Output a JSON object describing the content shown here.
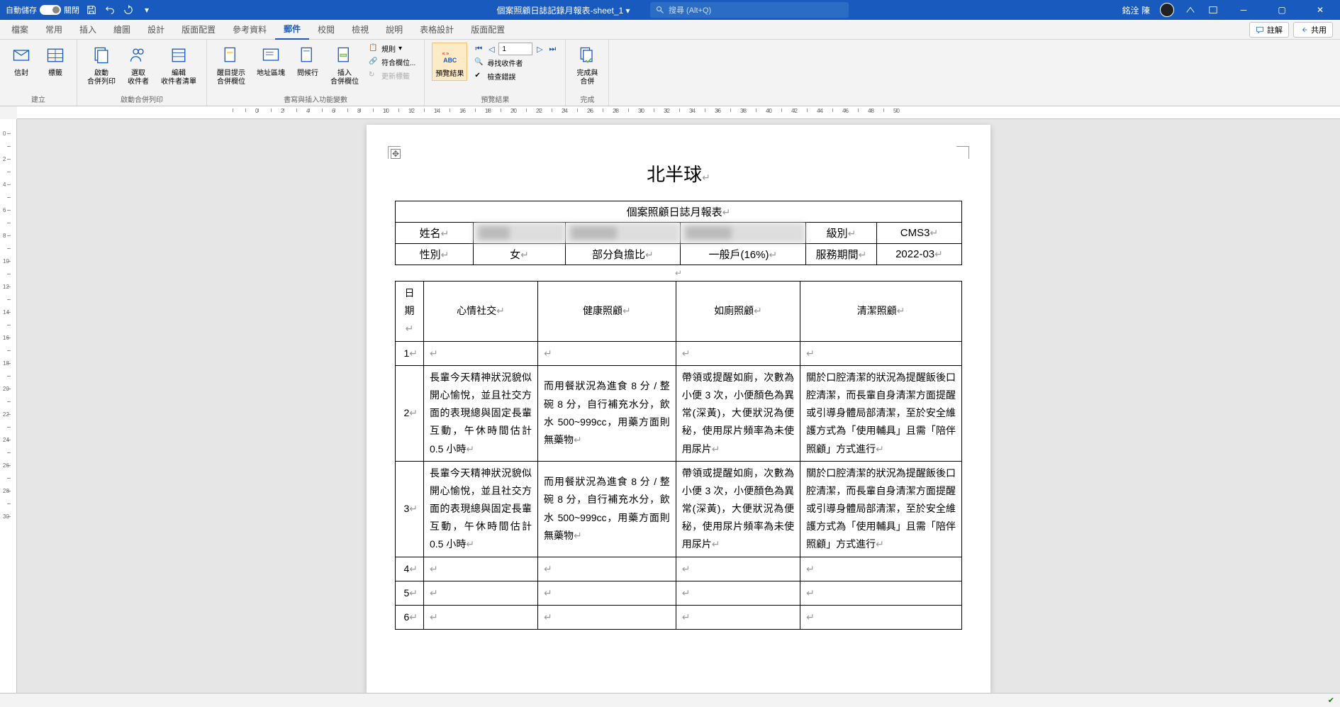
{
  "titlebar": {
    "autosave_label": "自動儲存",
    "autosave_state": "關閉",
    "doc_title": "個案照顧日誌記錄月報表-sheet_1",
    "search_placeholder": "搜尋 (Alt+Q)",
    "user_name": "銘洤 陳"
  },
  "tabs": {
    "file": "檔案",
    "home": "常用",
    "insert": "插入",
    "draw": "繪圖",
    "design": "設計",
    "layout": "版面配置",
    "references": "參考資料",
    "mailings": "郵件",
    "review": "校閱",
    "view": "檢視",
    "help": "說明",
    "table_design": "表格設計",
    "table_layout": "版面配置",
    "comments_btn": "註解",
    "share_btn": "共用"
  },
  "ribbon": {
    "group_create": "建立",
    "envelope": "信封",
    "labels": "標籤",
    "group_start": "啟動合併列印",
    "start_merge": "啟動\n合併列印",
    "select_recipients": "選取\n收件者",
    "edit_recipients": "編輯\n收件者清單",
    "group_write": "書寫與插入功能變數",
    "highlight_fields": "醒目提示\n合併欄位",
    "address_block": "地址區塊",
    "greeting": "問候行",
    "insert_field": "插入\n合併欄位",
    "rules": "規則",
    "match_fields": "符合欄位...",
    "update_labels": "更新標籤",
    "group_preview": "預覽結果",
    "preview_results": "預覽結果",
    "record_number": "1",
    "find_recipient": "尋找收件者",
    "check_errors": "檢查錯誤",
    "group_finish": "完成",
    "finish_merge": "完成與\n合併"
  },
  "document": {
    "org_title": "北半球",
    "report_title": "個案照顧日誌月報表",
    "labels": {
      "name": "姓名",
      "grade": "級別",
      "gender": "性別",
      "female": "女",
      "copay": "部分負擔比",
      "household": "一般戶(16%)",
      "service_period": "服務期間"
    },
    "values": {
      "grade": "CMS3",
      "period": "2022-03",
      "name_blur": "████",
      "id_blur": "██████",
      "addr_blur": "██████"
    },
    "columns": {
      "date": "日期",
      "mood": "心情社交",
      "health": "健康照顧",
      "toilet": "如廁照顧",
      "clean": "清潔照顧"
    },
    "rows": [
      {
        "date": "1",
        "mood": "",
        "health": "",
        "toilet": "",
        "clean": ""
      },
      {
        "date": "2",
        "mood": "長輩今天精神狀況貌似開心愉悅，並且社交方面的表現總與固定長輩互動，午休時間估計 0.5 小時",
        "health": "而用餐狀況為進食 8 分 / 整碗 8 分，自行補充水分，飲水 500~999cc，用藥方面則無藥物",
        "toilet": "帶領或提醒如廁，次數為小便 3 次，小便顏色為異常(深黃)，大便狀況為便秘，使用尿片頻率為未使用尿片",
        "clean": "關於口腔清潔的狀況為提醒飯後口腔清潔，而長輩自身清潔方面提醒或引導身體局部清潔，至於安全維護方式為「使用輔具」且需「陪伴照顧」方式進行"
      },
      {
        "date": "3",
        "mood": "長輩今天精神狀況貌似開心愉悅，並且社交方面的表現總與固定長輩互動，午休時間估計 0.5 小時",
        "health": "而用餐狀況為進食 8 分 / 整碗 8 分，自行補充水分，飲水 500~999cc，用藥方面則無藥物",
        "toilet": "帶領或提醒如廁，次數為小便 3 次，小便顏色為異常(深黃)，大便狀況為便秘，使用尿片頻率為未使用尿片",
        "clean": "關於口腔清潔的狀況為提醒飯後口腔清潔，而長輩自身清潔方面提醒或引導身體局部清潔，至於安全維護方式為「使用輔具」且需「陪伴照顧」方式進行"
      },
      {
        "date": "4",
        "mood": "",
        "health": "",
        "toilet": "",
        "clean": ""
      },
      {
        "date": "5",
        "mood": "",
        "health": "",
        "toilet": "",
        "clean": ""
      },
      {
        "date": "6",
        "mood": "",
        "health": "",
        "toilet": "",
        "clean": ""
      }
    ]
  },
  "colors": {
    "brand": "#185abd",
    "highlight_bg": "#fdeac7",
    "highlight_border": "#f5c26b"
  }
}
